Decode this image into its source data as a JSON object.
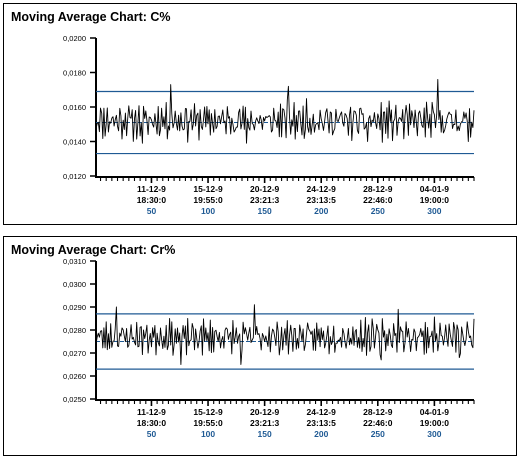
{
  "chart_data": [
    {
      "type": "line",
      "title": "Moving Average Chart: C%",
      "ylim": [
        0.012,
        0.02
      ],
      "y_ticks": [
        "0,0120",
        "0,0140",
        "0,0160",
        "0,0180",
        "0,0200"
      ],
      "y_tick_values": [
        0.012,
        0.014,
        0.016,
        0.018,
        0.02
      ],
      "xlim": [
        1,
        335
      ],
      "x_ticks": [
        {
          "x": 50,
          "date": "11-12-9",
          "time": "18:30:0",
          "index": "50"
        },
        {
          "x": 100,
          "date": "15-12-9",
          "time": "19:55:0",
          "index": "100"
        },
        {
          "x": 150,
          "date": "20-12-9",
          "time": "23:21:3",
          "index": "150"
        },
        {
          "x": 200,
          "date": "24-12-9",
          "time": "23:13:5",
          "index": "200"
        },
        {
          "x": 250,
          "date": "28-12-9",
          "time": "22:46:0",
          "index": "250"
        },
        {
          "x": 300,
          "date": "04-01-9",
          "time": "19:00:0",
          "index": "300"
        }
      ],
      "center_line": 0.0151,
      "ucl": 0.0169,
      "lcl": 0.0133,
      "series_base": 0.0152,
      "series_amp": 0.00095,
      "series_seed": 11,
      "series_peaks": [
        {
          "x": 67,
          "y": 0.0173
        },
        {
          "x": 171,
          "y": 0.0172
        },
        {
          "x": 303,
          "y": 0.0176
        },
        {
          "x": 42,
          "y": 0.0139
        },
        {
          "x": 134,
          "y": 0.0139
        },
        {
          "x": 241,
          "y": 0.014
        },
        {
          "x": 330,
          "y": 0.014
        }
      ],
      "line_color": "#000000",
      "limit_color": "#1f5a94",
      "index_color": "#1f5a94"
    },
    {
      "type": "line",
      "title": "Moving Average Chart: Cr%",
      "ylim": [
        0.025,
        0.031
      ],
      "y_ticks": [
        "0,0250",
        "0,0260",
        "0,0270",
        "0,0280",
        "0,0290",
        "0,0300",
        "0,0310"
      ],
      "y_tick_values": [
        0.025,
        0.026,
        0.027,
        0.028,
        0.029,
        0.03,
        0.031
      ],
      "xlim": [
        1,
        335
      ],
      "x_ticks": [
        {
          "x": 50,
          "date": "11-12-9",
          "time": "18:30:0",
          "index": "50"
        },
        {
          "x": 100,
          "date": "15-12-9",
          "time": "19:55:0",
          "index": "100"
        },
        {
          "x": 150,
          "date": "20-12-9",
          "time": "23:21:3",
          "index": "150"
        },
        {
          "x": 200,
          "date": "24-12-9",
          "time": "23:13:5",
          "index": "200"
        },
        {
          "x": 250,
          "date": "28-12-9",
          "time": "22:46:0",
          "index": "250"
        },
        {
          "x": 300,
          "date": "04-01-9",
          "time": "19:00:0",
          "index": "300"
        }
      ],
      "center_line": 0.0275,
      "ucl": 0.0287,
      "lcl": 0.0263,
      "series_base": 0.0277,
      "series_amp": 0.00065,
      "series_seed": 23,
      "series_peaks": [
        {
          "x": 19,
          "y": 0.029
        },
        {
          "x": 141,
          "y": 0.0291
        },
        {
          "x": 268,
          "y": 0.0289
        },
        {
          "x": 76,
          "y": 0.0265
        },
        {
          "x": 129,
          "y": 0.0265
        },
        {
          "x": 253,
          "y": 0.0267
        },
        {
          "x": 322,
          "y": 0.0268
        }
      ],
      "line_color": "#000000",
      "limit_color": "#1f5a94",
      "index_color": "#1f5a94"
    }
  ]
}
